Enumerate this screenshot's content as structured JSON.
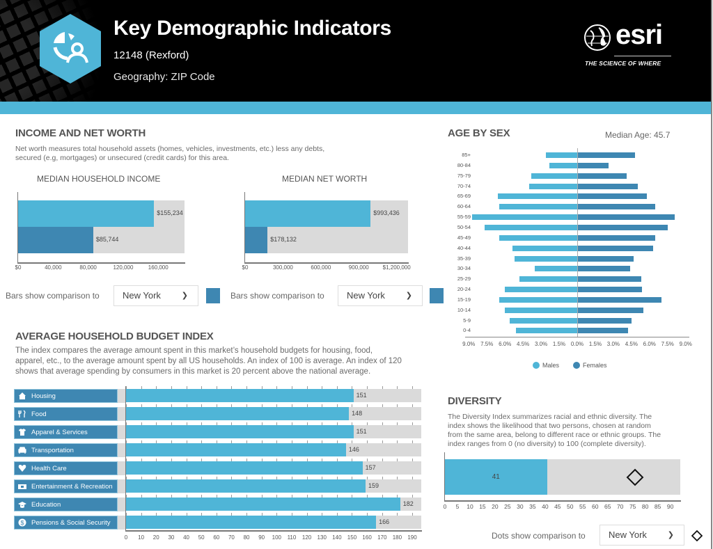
{
  "header": {
    "title": "Key Demographic Indicators",
    "location": "12148 (Rexford)",
    "geography": "Geography: ZIP Code",
    "brand": "esri",
    "tagline": "THE SCIENCE OF WHERE",
    "logo_icon": "demographics-icon",
    "accent_color": "#4fb5d7"
  },
  "income": {
    "title": "INCOME AND NET WORTH",
    "description_line1": "Net worth measures total household assets (homes, vehicles, investments, etc.) less any debts,",
    "description_line2": "secured (e.g, mortgages) or unsecured (credit cards) for this area.",
    "comparison_label": "Bars show comparison to",
    "comparison_value": "New York",
    "comparison_color": "#3e87b2"
  },
  "budget": {
    "title": "AVERAGE HOUSEHOLD BUDGET INDEX",
    "description_line1": "The index compares the average amount spent in this market’s household budgets for housing, food,",
    "description_line2": "apparel, etc., to the average amount spent by all US households. An index of 100 is average. An index of 120",
    "description_line3": "shows that average spending by consumers in this market is 20 percent above the national average."
  },
  "age": {
    "title": "AGE BY SEX",
    "median_label": "Median Age: 45.7"
  },
  "diversity": {
    "title": "DIVERSITY",
    "description_line1": "The Diversity Index summarizes racial and ethnic diversity. The",
    "description_line2": "index shows the likelihood that two persons, chosen at random",
    "description_line3": "from the same area, belong to different race or ethnic groups. The",
    "description_line4": "index ranges from 0 (no diversity) to 100 (complete diversity).",
    "comparison_label": "Dots show comparison to",
    "comparison_value": "New York"
  },
  "chart_data": [
    {
      "id": "median-household-income",
      "type": "bar",
      "title": "MEDIAN HOUSEHOLD INCOME",
      "orientation": "horizontal",
      "series": [
        {
          "name": "12148 (Rexford)",
          "value": 155234,
          "label": "$155,234",
          "color": "#4fb5d7"
        },
        {
          "name": "New York",
          "value": 85744,
          "label": "$85,744",
          "color": "#3e87b2"
        }
      ],
      "xlim": [
        0,
        190000
      ],
      "xticks": [
        "$0",
        "40,000",
        "80,000",
        "120,000",
        "160,000"
      ],
      "xtick_values": [
        0,
        40000,
        80000,
        120000,
        160000
      ]
    },
    {
      "id": "median-net-worth",
      "type": "bar",
      "title": "MEDIAN NET WORTH",
      "orientation": "horizontal",
      "series": [
        {
          "name": "12148 (Rexford)",
          "value": 993436,
          "label": "$993,436",
          "color": "#4fb5d7"
        },
        {
          "name": "New York",
          "value": 178132,
          "label": "$178,132",
          "color": "#3e87b2"
        }
      ],
      "xlim": [
        0,
        1290000
      ],
      "xticks": [
        "$0",
        "300,000",
        "600,000",
        "900,000",
        "$1,200,000"
      ],
      "xtick_values": [
        0,
        300000,
        600000,
        900000,
        1200000
      ]
    },
    {
      "id": "household-budget-index",
      "type": "bar",
      "orientation": "horizontal",
      "categories": [
        "Housing",
        "Food",
        "Apparel & Services",
        "Transportation",
        "Health Care",
        "Entertainment & Recreation",
        "Education",
        "Pensions & Social Security"
      ],
      "icons": [
        "house-icon",
        "fork-knife-icon",
        "shirt-icon",
        "car-icon",
        "heart-icon",
        "ticket-icon",
        "graduation-cap-icon",
        "dollar-globe-icon"
      ],
      "values": [
        151,
        148,
        151,
        146,
        157,
        159,
        182,
        166
      ],
      "xlim": [
        0,
        196
      ],
      "xticks": [
        "0",
        "10",
        "20",
        "30",
        "40",
        "50",
        "60",
        "70",
        "80",
        "90",
        "100",
        "110",
        "120",
        "130",
        "140",
        "150",
        "160",
        "170",
        "180",
        "190"
      ],
      "xtick_values": [
        0,
        10,
        20,
        30,
        40,
        50,
        60,
        70,
        80,
        90,
        100,
        110,
        120,
        130,
        140,
        150,
        160,
        170,
        180,
        190
      ]
    },
    {
      "id": "age-by-sex",
      "type": "bar",
      "orientation": "horizontal-diverging",
      "categories": [
        "85+",
        "80-84",
        "75-79",
        "70-74",
        "65-69",
        "60-64",
        "55-59",
        "50-54",
        "45-49",
        "40-44",
        "35-39",
        "30-34",
        "25-29",
        "20-24",
        "15-19",
        "10-14",
        "5-9",
        "0-4"
      ],
      "series": [
        {
          "name": "Males",
          "color": "#4fb5d7",
          "values": [
            2.6,
            2.3,
            3.8,
            4.0,
            6.6,
            6.5,
            8.7,
            7.7,
            6.5,
            5.4,
            5.2,
            3.5,
            4.8,
            6.0,
            6.5,
            6.0,
            5.6,
            5.1
          ]
        },
        {
          "name": "Females",
          "color": "#3e87b2",
          "values": [
            4.8,
            2.6,
            4.1,
            5.0,
            5.8,
            6.5,
            8.1,
            7.5,
            6.5,
            6.3,
            4.7,
            4.4,
            5.3,
            5.4,
            7.0,
            5.5,
            4.5,
            4.2
          ]
        }
      ],
      "xlim": [
        -9,
        9
      ],
      "xticks": [
        "9.0%",
        "7.5%",
        "6.0%",
        "4.5%",
        "3.0%",
        "1.5%",
        "0.0%",
        "1.5%",
        "3.0%",
        "4.5%",
        "6.0%",
        "7.5%",
        "9.0%"
      ],
      "xtick_values": [
        -9,
        -7.5,
        -6,
        -4.5,
        -3,
        -1.5,
        0,
        1.5,
        3,
        4.5,
        6,
        7.5,
        9
      ],
      "legend": [
        "Males",
        "Females"
      ],
      "legend_position": "bottom"
    },
    {
      "id": "diversity-index",
      "type": "bar",
      "orientation": "horizontal",
      "value": 41,
      "value_label": "41",
      "comparison_marker": {
        "name": "New York",
        "value": 76,
        "shape": "diamond"
      },
      "xlim": [
        0,
        94
      ],
      "xticks": [
        "0",
        "5",
        "10",
        "15",
        "20",
        "25",
        "30",
        "35",
        "40",
        "45",
        "50",
        "55",
        "60",
        "65",
        "70",
        "75",
        "80",
        "85",
        "90"
      ],
      "xtick_values": [
        0,
        5,
        10,
        15,
        20,
        25,
        30,
        35,
        40,
        45,
        50,
        55,
        60,
        65,
        70,
        75,
        80,
        85,
        90
      ]
    }
  ]
}
